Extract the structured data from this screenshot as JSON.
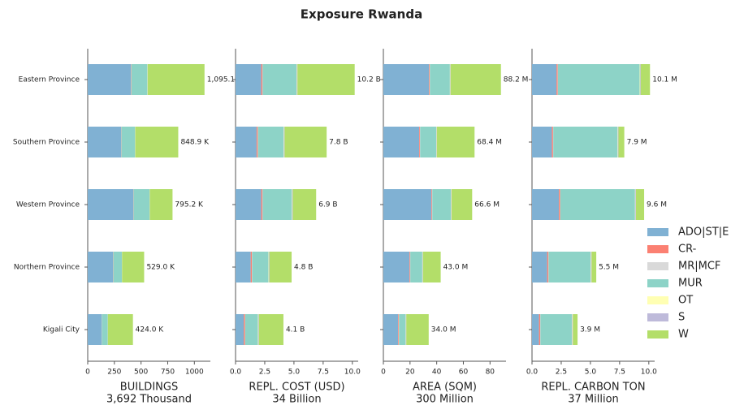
{
  "title": "Exposure Rwanda",
  "categories": [
    "Eastern Province",
    "Southern Province",
    "Western Province",
    "Northern Province",
    "Kigali City"
  ],
  "legend": [
    {
      "name": "ADO|ST|E",
      "color": "#80b1d3"
    },
    {
      "name": "CR-",
      "color": "#fb8072"
    },
    {
      "name": "MR|MCF",
      "color": "#d9d9d9"
    },
    {
      "name": "MUR",
      "color": "#8dd3c7"
    },
    {
      "name": "OT",
      "color": "#ffffb3"
    },
    {
      "name": "S",
      "color": "#bebada"
    },
    {
      "name": "W",
      "color": "#b3de69"
    }
  ],
  "chart_data": [
    {
      "type": "bar",
      "orientation": "horizontal",
      "xlabel": "BUILDINGS",
      "xlabel_total": "3,692 Thousand",
      "xlim": [
        0,
        1150
      ],
      "xticks": [
        0,
        250,
        500,
        750,
        1000
      ],
      "series": [
        {
          "values": [
            405,
            313,
            427,
            237,
            130
          ]
        },
        {
          "values": [
            3,
            2,
            2,
            2,
            1
          ]
        },
        {
          "values": [
            1,
            1,
            1,
            1,
            1
          ]
        },
        {
          "values": [
            150,
            128,
            150,
            80,
            55
          ]
        },
        {
          "values": [
            2,
            1,
            1,
            1,
            1
          ]
        },
        {
          "values": [
            1,
            1,
            1,
            1,
            1
          ]
        },
        {
          "values": [
            533.1,
            402.9,
            213.2,
            207,
            235
          ]
        }
      ],
      "totals": [
        1095.1,
        848.9,
        795.2,
        529.0,
        424.0
      ],
      "total_labels": [
        "1,095.1 K",
        "848.9 K",
        "795.2 K",
        "529.0 K",
        "424.0 K"
      ]
    },
    {
      "type": "bar",
      "orientation": "horizontal",
      "xlabel": "REPL. COST (USD)",
      "xlabel_total": "34 Billion",
      "xlim": [
        0,
        10.5
      ],
      "xticks": [
        {
          "value": 0,
          "label": "0.0"
        },
        {
          "value": 2.5,
          "label": "2.5"
        },
        {
          "value": 5,
          "label": "5.0"
        },
        {
          "value": 7.5,
          "label": "7.5"
        },
        {
          "value": 10,
          "label": "10.0"
        }
      ],
      "series": [
        {
          "values": [
            2.2,
            1.8,
            2.2,
            1.3,
            0.7
          ]
        },
        {
          "values": [
            0.1,
            0.1,
            0.1,
            0.1,
            0.1
          ]
        },
        {
          "values": [
            0.02,
            0.02,
            0.02,
            0.02,
            0.02
          ]
        },
        {
          "values": [
            2.9,
            2.2,
            2.5,
            1.4,
            1.1
          ]
        },
        {
          "values": [
            0.03,
            0.03,
            0.03,
            0.03,
            0.03
          ]
        },
        {
          "values": [
            0.05,
            0.05,
            0.05,
            0.05,
            0.05
          ]
        },
        {
          "values": [
            4.9,
            3.6,
            2.0,
            1.9,
            2.1
          ]
        }
      ],
      "totals": [
        10.2,
        7.8,
        6.9,
        4.8,
        4.1
      ],
      "total_labels": [
        "10.2 B",
        "7.8 B",
        "6.9 B",
        "4.8 B",
        "4.1 B"
      ]
    },
    {
      "type": "bar",
      "orientation": "horizontal",
      "xlabel": "AREA (SQM)",
      "xlabel_total": "300 Million",
      "xlim": [
        0,
        92
      ],
      "xticks": [
        0,
        20,
        40,
        60,
        80
      ],
      "series": [
        {
          "values": [
            34.2,
            26.9,
            36,
            19.5,
            11
          ]
        },
        {
          "values": [
            0.5,
            0.5,
            0.5,
            0.5,
            0.5
          ]
        },
        {
          "values": [
            0.2,
            0.2,
            0.2,
            0.2,
            0.2
          ]
        },
        {
          "values": [
            15,
            12,
            14,
            9,
            5
          ]
        },
        {
          "values": [
            0.2,
            0.2,
            0.2,
            0.2,
            0.2
          ]
        },
        {
          "values": [
            0.3,
            0.3,
            0.3,
            0.3,
            0.3
          ]
        },
        {
          "values": [
            37.8,
            28.3,
            15.4,
            13.3,
            16.8
          ]
        }
      ],
      "totals": [
        88.2,
        68.4,
        66.6,
        43.0,
        34.0
      ],
      "total_labels": [
        "88.2 M",
        "68.4 M",
        "66.6 M",
        "43.0 M",
        "34.0 M"
      ]
    },
    {
      "type": "bar",
      "orientation": "horizontal",
      "xlabel": "REPL. CARBON TON",
      "xlabel_total": "37 Million",
      "xlim": [
        0,
        10.5
      ],
      "xticks": [
        {
          "value": 0,
          "label": "0.0"
        },
        {
          "value": 2.5,
          "label": "2.5"
        },
        {
          "value": 5,
          "label": "5.0"
        },
        {
          "value": 7.5,
          "label": "7.5"
        },
        {
          "value": 10,
          "label": "10.0"
        }
      ],
      "series": [
        {
          "values": [
            2.1,
            1.7,
            2.3,
            1.3,
            0.6
          ]
        },
        {
          "values": [
            0.1,
            0.1,
            0.1,
            0.1,
            0.1
          ]
        },
        {
          "values": [
            0.02,
            0.02,
            0.02,
            0.02,
            0.02
          ]
        },
        {
          "values": [
            7.0,
            5.5,
            6.4,
            3.6,
            2.7
          ]
        },
        {
          "values": [
            0.03,
            0.03,
            0.03,
            0.03,
            0.03
          ]
        },
        {
          "values": [
            0.05,
            0.05,
            0.05,
            0.05,
            0.05
          ]
        },
        {
          "values": [
            0.8,
            0.5,
            0.7,
            0.4,
            0.4
          ]
        }
      ],
      "totals": [
        10.1,
        7.9,
        9.6,
        5.5,
        3.9
      ],
      "total_labels": [
        "10.1 M",
        "7.9 M",
        "9.6 M",
        "5.5 M",
        "3.9 M"
      ]
    }
  ]
}
